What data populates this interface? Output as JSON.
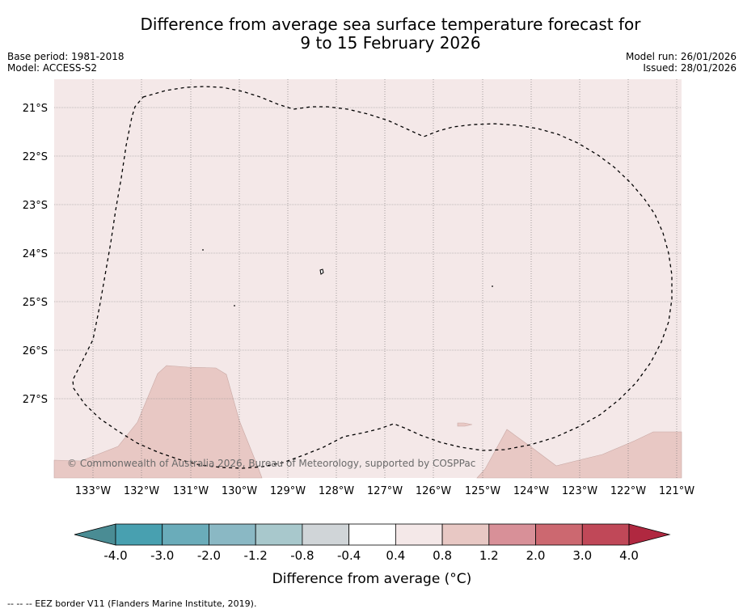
{
  "title_line1": "Difference from average sea surface temperature forecast for",
  "title_line2": "9 to 15 February 2026",
  "base_period": "Base period: 1981-2018",
  "model": "Model: ACCESS-S2",
  "model_run": "Model run: 26/01/2026",
  "issued": "Issued: 28/01/2026",
  "copyright": "© Commonwealth of Australia 2026, Bureau of Meteorology, supported by COSPPac",
  "lat_labels": [
    "21°S",
    "22°S",
    "23°S",
    "24°S",
    "25°S",
    "26°S",
    "27°S"
  ],
  "lon_labels": [
    "133°W",
    "132°W",
    "131°W",
    "130°W",
    "129°W",
    "128°W",
    "127°W",
    "126°W",
    "125°W",
    "124°W",
    "123°W",
    "122°W",
    "121°W"
  ],
  "colorbar": {
    "tick_labels": [
      "-4.0",
      "-3.0",
      "-2.0",
      "-1.2",
      "-0.8",
      "-0.4",
      "0.4",
      "0.8",
      "1.2",
      "2.0",
      "3.0",
      "4.0"
    ],
    "colors": [
      "#4a8c94",
      "#48a0b0",
      "#6aacba",
      "#8ab8c4",
      "#a8c8cc",
      "#d0d5d8",
      "#ffffff",
      "#f4e8e8",
      "#e8c8c4",
      "#d89098",
      "#cc6870",
      "#c04858",
      "#b02840"
    ],
    "label": "Difference from average (°C)"
  },
  "colors": {
    "background_anomaly": "#f4e8e8",
    "warm_anomaly": "#e8c8c4",
    "grid": "#888888",
    "eez_line": "#000000"
  },
  "footnote": "--  --  -- EEZ border V11 (Flanders Marine Institute, 2019)."
}
